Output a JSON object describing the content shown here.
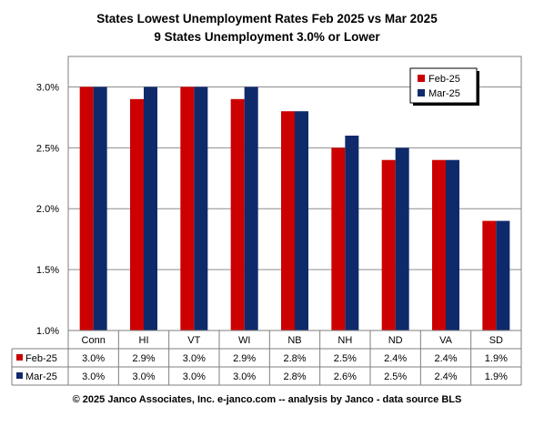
{
  "chart_data": {
    "type": "bar",
    "title": "States Lowest Unemployment Rates Feb 2025 vs Mar 2025",
    "subtitle": "9 States  Unemployment 3.0% or Lower",
    "categories": [
      "Conn",
      "HI",
      "VT",
      "WI",
      "NB",
      "NH",
      "ND",
      "VA",
      "SD"
    ],
    "series": [
      {
        "name": "Feb-25",
        "color": "#cc0000",
        "values": [
          3.0,
          2.9,
          3.0,
          2.9,
          2.8,
          2.5,
          2.4,
          2.4,
          1.9
        ],
        "labels": [
          "3.0%",
          "2.9%",
          "3.0%",
          "2.9%",
          "2.8%",
          "2.5%",
          "2.4%",
          "2.4%",
          "1.9%"
        ]
      },
      {
        "name": "Mar-25",
        "color": "#0f2a6b",
        "values": [
          3.0,
          3.0,
          3.0,
          3.0,
          2.8,
          2.6,
          2.5,
          2.4,
          1.9
        ],
        "labels": [
          "3.0%",
          "3.0%",
          "3.0%",
          "3.0%",
          "2.8%",
          "2.6%",
          "2.5%",
          "2.4%",
          "1.9%"
        ]
      }
    ],
    "yticks": [
      {
        "value": 1.0,
        "label": "1.0%"
      },
      {
        "value": 1.5,
        "label": "1.5%"
      },
      {
        "value": 2.0,
        "label": "2.0%"
      },
      {
        "value": 2.5,
        "label": "2.5%"
      },
      {
        "value": 3.0,
        "label": "3.0%"
      }
    ],
    "ylim": [
      1.0,
      3.25
    ],
    "grid": true,
    "legend": "top-right",
    "data_table": true
  },
  "footer": "© 2025 Janco Associates, Inc. e-janco.com -- analysis by Janco - data source BLS"
}
